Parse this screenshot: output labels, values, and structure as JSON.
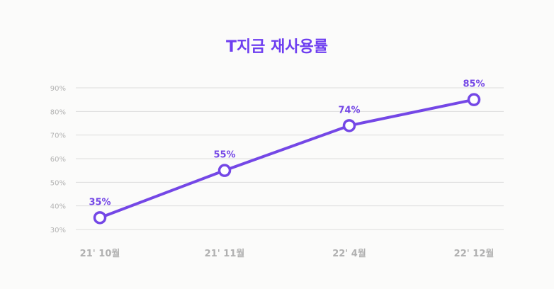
{
  "title": "T지금 재사용률",
  "chart_data": {
    "type": "line",
    "title": "T지금 재사용률",
    "xlabel": "",
    "ylabel": "",
    "categories": [
      "21' 10월",
      "21' 11월",
      "22' 4월",
      "22' 12월"
    ],
    "series": [
      {
        "name": "재사용률",
        "values": [
          35,
          55,
          74,
          85
        ],
        "labels": [
          "35%",
          "55%",
          "74%",
          "85%"
        ],
        "color": "#7447e6"
      }
    ],
    "yticks": [
      "30%",
      "40%",
      "50%",
      "60%",
      "70%",
      "80%",
      "90%"
    ],
    "ylim": [
      30,
      90
    ],
    "grid": true,
    "legend": "none"
  },
  "colors": {
    "accent": "#7447e6",
    "title": "#6e3ef0",
    "grid": "#dcdcdc",
    "tick": "#b3b3b3",
    "background": "#fbfbfa"
  }
}
